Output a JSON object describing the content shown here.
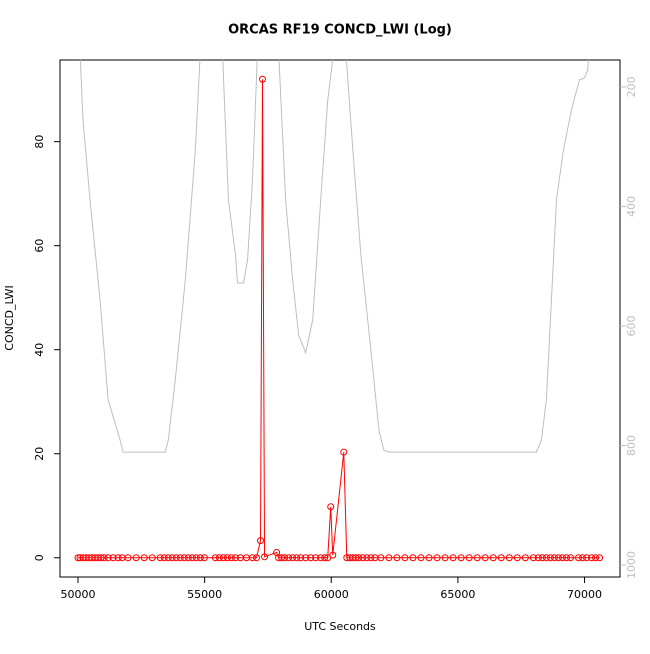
{
  "chart_data": {
    "type": "line",
    "title": "ORCAS RF19 CONCD_LWI (Log)",
    "x_label": "UTC Seconds",
    "y_label": "CONCD_LWI",
    "xlim": [
      49290,
      71400
    ],
    "xticks": [
      50000,
      55000,
      60000,
      65000,
      70000
    ],
    "ylim": [
      -3.7,
      95.7
    ],
    "yticks": [
      0,
      20,
      40,
      60,
      80
    ],
    "y2lim": [
      1020,
      155
    ],
    "y2ticks": [
      200,
      400,
      600,
      800,
      1000
    ],
    "series": [
      {
        "color": "#ff0000",
        "markers": true,
        "x": [
          50000,
          50079,
          50198,
          50317,
          50436,
          50554,
          50673,
          50792,
          50911,
          51030,
          51188,
          51386,
          51584,
          51742,
          51980,
          52297,
          52614,
          52930,
          53247,
          53406,
          53564,
          53722,
          53881,
          54040,
          54198,
          54356,
          54515,
          54673,
          54832,
          54990,
          55426,
          55584,
          55742,
          55900,
          56059,
          56217,
          56415,
          56653,
          56890,
          57049,
          57207,
          57286,
          57366,
          57841,
          57920,
          58039,
          58158,
          58316,
          58474,
          58633,
          58791,
          58989,
          59187,
          59385,
          59583,
          59742,
          59860,
          59979,
          60058,
          60494,
          60613,
          60732,
          60850,
          60969,
          61088,
          61246,
          61405,
          61563,
          61722,
          61959,
          62276,
          62593,
          62910,
          63227,
          63544,
          63861,
          64178,
          64494,
          64811,
          65128,
          65445,
          65762,
          66079,
          66396,
          66713,
          67030,
          67346,
          67663,
          67980,
          68178,
          68337,
          68495,
          68654,
          68812,
          68970,
          69129,
          69287,
          69445,
          69762,
          69921,
          70079,
          70277,
          70436,
          70594
        ],
        "values": [
          0,
          0,
          0,
          0,
          0,
          0,
          0,
          0,
          0,
          0,
          0,
          0,
          0,
          0,
          0,
          0,
          0,
          0,
          0,
          0,
          0,
          0,
          0,
          0,
          0,
          0,
          0,
          0,
          0,
          0,
          0,
          0,
          0,
          0,
          0,
          0,
          0,
          0,
          0,
          0,
          3.3,
          92,
          0.2,
          1,
          0,
          0,
          0,
          0,
          0,
          0,
          0,
          0,
          0,
          0,
          0,
          0,
          0,
          9.8,
          0.5,
          20.3,
          0,
          0,
          0,
          0,
          0,
          0,
          0,
          0,
          0,
          0,
          0,
          0,
          0,
          0,
          0,
          0,
          0,
          0,
          0,
          0,
          0,
          0,
          0,
          0,
          0,
          0,
          0,
          0,
          0,
          0,
          0,
          0,
          0,
          0,
          0,
          0,
          0,
          0,
          0,
          0,
          0,
          0,
          0,
          0
        ]
      },
      {
        "color": "#bebebe",
        "axis": "y2",
        "markers": false,
        "x": [
          50079,
          50198,
          50475,
          50871,
          51188,
          51663,
          51782,
          53446,
          53564,
          53842,
          54238,
          54634,
          54832,
          55703,
          55941,
          56218,
          56297,
          56535,
          56693,
          56891,
          57089,
          57921,
          58198,
          58475,
          58713,
          58990,
          59267,
          59584,
          59861,
          60099,
          60574,
          60851,
          61168,
          61564,
          61881,
          62079,
          62277,
          68099,
          68297,
          68495,
          68693,
          68891,
          69168,
          69485,
          69802,
          70000,
          70119,
          70198
        ],
        "values": [
          140,
          255,
          389,
          556,
          723,
          791,
          811,
          811,
          791,
          690,
          523,
          305,
          140,
          140,
          389,
          481,
          528,
          528,
          490,
          356,
          140,
          140,
          389,
          523,
          615,
          645,
          590,
          389,
          222,
          140,
          140,
          305,
          481,
          640,
          774,
          808,
          811,
          811,
          791,
          723,
          556,
          389,
          305,
          238,
          188,
          185,
          172,
          140
        ]
      }
    ]
  }
}
